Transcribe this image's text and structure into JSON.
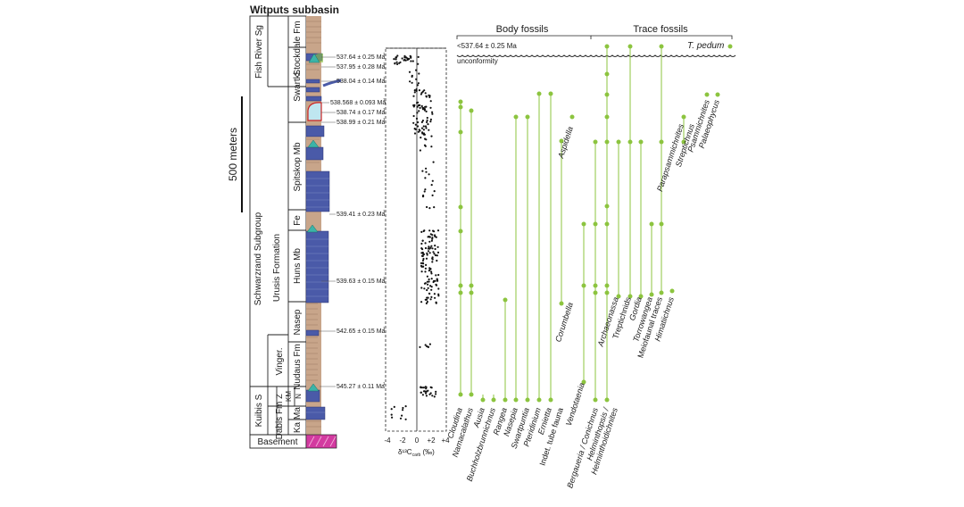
{
  "figure": {
    "title": "Witputs subbasin",
    "scale_bar": "500 meters",
    "units": {
      "stratigraphy_columns": [
        {
          "label": "Fish River Sg"
        },
        {
          "label": "Stockdale Fm"
        },
        {
          "label": "Swartkl."
        },
        {
          "label": "Spitskop Mb"
        },
        {
          "label": "Fe"
        },
        {
          "label": "Huns Mb"
        },
        {
          "label": "Nasep"
        },
        {
          "label": "Vinger."
        },
        {
          "label": "Nudaus Fm"
        },
        {
          "label": "Urusis Formation"
        },
        {
          "label": "Schwarzrand Subgroup"
        },
        {
          "label": "KM"
        },
        {
          "label": "N"
        },
        {
          "label": "Kuibis S"
        },
        {
          "label": "Z"
        },
        {
          "label": "Dabis Fm"
        },
        {
          "label": "Ka"
        },
        {
          "label": "Ma"
        },
        {
          "label": "Basement"
        }
      ]
    },
    "ages": [
      "537.64 ± 0.25 Ma",
      "537.95 ± 0.28 Ma",
      "538.04 ± 0.14 Ma",
      "538.568 ± 0.093 Ma",
      "538.74 ± 0.17 Ma",
      "538.99 ± 0.21 Ma",
      "539.41 ± 0.23 Ma",
      "539.63 ± 0.15 Ma",
      "542.65 ± 0.15 Ma",
      "545.27 ± 0.11 Ma"
    ],
    "age_superscript": "1",
    "isotope_axis": {
      "ticks": [
        "-4",
        "-2",
        "0",
        "+2",
        "+4"
      ],
      "label": "δ¹³C",
      "label_sub": "carb",
      "label_unit": " (‰)"
    },
    "headers": {
      "body": "Body fossils",
      "trace": "Trace fossils"
    },
    "unconformity": {
      "age": "<537.64 ± 0.25 Ma",
      "label": "unconformity"
    },
    "t_pedum": "T. pedum",
    "colors": {
      "carbonate": "#4a5aa8",
      "siliciclastic": "#c8a58a",
      "fossil_green": "#8cc43f",
      "basement": "#d33aa0",
      "ash_teal": "#3cb4a8"
    },
    "taxa_bottom": [
      {
        "name": "Cloudina",
        "italic": true
      },
      {
        "name": "Namacalathus",
        "italic": true
      },
      {
        "name": "Ausia",
        "italic": true
      },
      {
        "name": "Buchholzbrunnichnus",
        "italic": true
      },
      {
        "name": "Rangea",
        "italic": true
      },
      {
        "name": "Nasepia",
        "italic": true
      },
      {
        "name": "Swartpuntia",
        "italic": true
      },
      {
        "name": "Pteridinium",
        "italic": true
      },
      {
        "name": "Ernietta",
        "italic": true
      },
      {
        "name": "Indet. tube fauna",
        "italic": false
      },
      {
        "name": "Vendotaenia",
        "italic": true
      },
      {
        "name": "Bergaueria / Conichnus",
        "italic": true
      },
      {
        "name": "Helminthopsis /",
        "italic": true
      },
      {
        "name": "Helminthoidichnites",
        "italic": true
      }
    ],
    "taxa_mid": [
      {
        "name": "Aspidella",
        "italic": true
      },
      {
        "name": "Corumbella",
        "italic": true
      },
      {
        "name": "Archaeonassa",
        "italic": true
      },
      {
        "name": "Treptichnids",
        "italic": false
      },
      {
        "name": "Gordia",
        "italic": true
      },
      {
        "name": "Torrowangea",
        "italic": true
      },
      {
        "name": "Meiofaunal traces",
        "italic": false
      },
      {
        "name": "Himatiichnus",
        "italic": true
      },
      {
        "name": "Parapsammichnites",
        "italic": true
      },
      {
        "name": "Streptichnus",
        "italic": true
      },
      {
        "name": "Psammichnites",
        "italic": true
      },
      {
        "name": "Palaeophycus",
        "italic": true
      }
    ]
  }
}
